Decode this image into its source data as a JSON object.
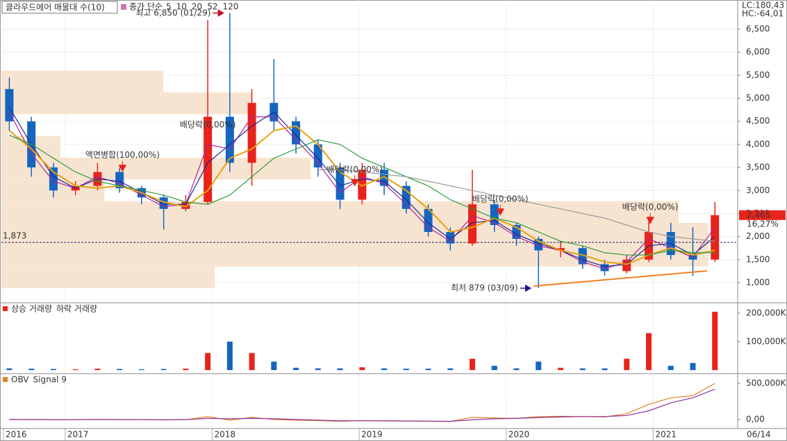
{
  "chart_data": [
    {
      "type": "candlestick",
      "title": "클라우드에어 매물대 수(10)",
      "ma_label": "종가 단순",
      "status": [
        {
          "text": "LC:180,43",
          "color": "#d01010"
        },
        {
          "text": "HC:-64,01",
          "color": "#1040c0"
        }
      ],
      "x": [
        2016.62,
        2016.77,
        2016.92,
        2017.07,
        2017.22,
        2017.37,
        2017.52,
        2017.67,
        2017.82,
        2017.97,
        2018.12,
        2018.27,
        2018.42,
        2018.57,
        2018.72,
        2018.87,
        2019.02,
        2019.17,
        2019.32,
        2019.47,
        2019.62,
        2019.77,
        2019.92,
        2020.07,
        2020.22,
        2020.37,
        2020.52,
        2020.67,
        2020.82,
        2020.97,
        2021.12,
        2021.27,
        2021.42
      ],
      "open": [
        5200,
        4500,
        3500,
        3000,
        3100,
        3400,
        3050,
        2850,
        2600,
        2750,
        4600,
        3600,
        4900,
        4500,
        4000,
        3500,
        2800,
        3450,
        3100,
        2600,
        2100,
        1850,
        2700,
        2250,
        1950,
        1700,
        1750,
        1400,
        1250,
        1500,
        2100,
        1600,
        1500
      ],
      "high": [
        5450,
        4600,
        3600,
        3200,
        3600,
        3500,
        3100,
        2900,
        2900,
        6700,
        6850,
        5200,
        5850,
        4600,
        4100,
        3600,
        3600,
        3600,
        3200,
        2700,
        2200,
        3450,
        2800,
        2300,
        2000,
        1900,
        1800,
        1500,
        1600,
        2400,
        2300,
        2200,
        2750
      ],
      "low": [
        4300,
        3300,
        2850,
        2900,
        3000,
        2950,
        2700,
        2150,
        2550,
        2700,
        3400,
        3100,
        4300,
        3800,
        3300,
        2600,
        2700,
        2900,
        2500,
        2000,
        1700,
        1800,
        2100,
        1800,
        879,
        1550,
        1300,
        1150,
        1200,
        1450,
        1500,
        1150,
        1450
      ],
      "close": [
        4500,
        3500,
        3000,
        3100,
        3400,
        3050,
        2850,
        2600,
        2750,
        4600,
        3600,
        4900,
        4500,
        4000,
        3500,
        2800,
        3450,
        3100,
        2600,
        2100,
        1850,
        2700,
        2250,
        1950,
        1700,
        1750,
        1400,
        1250,
        1500,
        2100,
        1600,
        1500,
        2465
      ],
      "up_color": "#e8231c",
      "down_color": "#1565c0",
      "series": [
        {
          "name": "5",
          "color": "#b0209a",
          "values": [
            4700,
            3800,
            3200,
            3050,
            3300,
            3150,
            2900,
            2650,
            2700,
            4000,
            3900,
            4600,
            4600,
            4100,
            3600,
            2950,
            3300,
            3150,
            2700,
            2200,
            1900,
            2450,
            2300,
            2000,
            1800,
            1700,
            1450,
            1300,
            1450,
            1950,
            1750,
            1550,
            2200
          ]
        },
        {
          "name": "10",
          "color": "#1a2a9a",
          "values": [
            4800,
            4000,
            3300,
            3050,
            3250,
            3200,
            2950,
            2700,
            2700,
            3600,
            4000,
            4400,
            4700,
            4200,
            3700,
            3100,
            3250,
            3200,
            2800,
            2300,
            1950,
            2300,
            2350,
            2050,
            1850,
            1700,
            1500,
            1350,
            1400,
            1800,
            1850,
            1600,
            2000
          ]
        },
        {
          "name": "20",
          "color": "#e8a010",
          "values": [
            4300,
            3900,
            3400,
            3100,
            3050,
            3100,
            2950,
            2750,
            2650,
            3000,
            3700,
            3900,
            4300,
            4400,
            4000,
            3400,
            3100,
            3300,
            3000,
            2600,
            2100,
            2200,
            2400,
            2200,
            1900,
            1700,
            1600,
            1450,
            1400,
            1600,
            1750,
            1600,
            1700
          ]
        },
        {
          "name": "52",
          "color": "#2a9a3a",
          "values": [
            4200,
            4000,
            3700,
            3400,
            3200,
            3100,
            3000,
            2900,
            2750,
            2700,
            2900,
            3300,
            3700,
            3900,
            4100,
            4000,
            3700,
            3500,
            3300,
            3100,
            2800,
            2600,
            2400,
            2300,
            2100,
            1900,
            1800,
            1650,
            1600,
            1600,
            1700,
            1650,
            1650
          ]
        },
        {
          "name": "120",
          "color": "#9a9a9a",
          "values": [
            null,
            null,
            null,
            null,
            null,
            null,
            null,
            null,
            null,
            null,
            null,
            null,
            null,
            null,
            3450,
            3450,
            3400,
            3350,
            3300,
            3200,
            3100,
            3000,
            2900,
            2800,
            2700,
            2600,
            2500,
            2400,
            2250,
            2100,
            2000,
            1950,
            1900
          ]
        }
      ],
      "volume_profile": {
        "bins": [
          880,
          1352,
          1824,
          2296,
          2768,
          3240,
          3712,
          4184,
          4656,
          5128,
          5600
        ],
        "values": [
          29,
          96,
          96,
          92,
          14,
          42,
          8,
          1,
          34,
          22
        ],
        "color": "#f7e4d0"
      },
      "reference_line": {
        "value": 1873,
        "label": "1,873"
      },
      "last": {
        "value": 2465,
        "label": "2,465",
        "change": "16,27%"
      },
      "annotations": [
        {
          "text": "최고 6,850 (01/29)",
          "x": 2018.08,
          "y": 6850,
          "arrow": "right",
          "color": "#c0102a"
        },
        {
          "text": "최저 879 (03/09)",
          "x": 2020.17,
          "y": 879,
          "arrow": "right",
          "color": "#1a1a8c"
        },
        {
          "text": "액면병합(100,00%)",
          "x": 2017.39,
          "y": 3370,
          "arrow": "down",
          "color": "#e8231c"
        },
        {
          "text": "배당락(0,00%)",
          "x": 2017.97,
          "y": 4030,
          "arrow": "down",
          "color": "#e8231c"
        },
        {
          "text": "배당락(0,00%)",
          "x": 2018.97,
          "y": 3060,
          "arrow": "down",
          "color": "#e8231c"
        },
        {
          "text": "배당락(0,00%)",
          "x": 2019.96,
          "y": 2420,
          "arrow": "down",
          "color": "#e8231c"
        },
        {
          "text": "배당락(0,00%)",
          "x": 2020.98,
          "y": 2240,
          "arrow": "down",
          "color": "#e8231c"
        }
      ],
      "xlim": [
        2016.566,
        2021.575
      ],
      "ylim": [
        578,
        7133
      ],
      "yticks": [
        {
          "value": 1000,
          "label": "1,000"
        },
        {
          "value": 1500,
          "label": "1,500"
        },
        {
          "value": 2000,
          "label": "2,000"
        },
        {
          "value": 2500,
          "label": "2,500"
        },
        {
          "value": 3000,
          "label": "3,000"
        },
        {
          "value": 3500,
          "label": "3,500"
        },
        {
          "value": 4000,
          "label": "4,000"
        },
        {
          "value": 4500,
          "label": "4,500"
        },
        {
          "value": 5000,
          "label": "5,000"
        },
        {
          "value": 5500,
          "label": "5,500"
        },
        {
          "value": 6000,
          "label": "6,000"
        },
        {
          "value": 6500,
          "label": "6,500"
        }
      ],
      "grid": true
    },
    {
      "type": "bar",
      "series": [
        {
          "name": "상승 거래량",
          "color": "#e8231c",
          "values": [
            null,
            null,
            null,
            3000,
            5000,
            null,
            null,
            null,
            5000,
            60000,
            null,
            60000,
            null,
            null,
            null,
            null,
            10000,
            null,
            null,
            null,
            null,
            40000,
            null,
            null,
            null,
            8000,
            null,
            null,
            40000,
            130000,
            null,
            null,
            205000
          ]
        },
        {
          "name": "하락 거래량",
          "color": "#1565c0",
          "values": [
            6000,
            5000,
            4000,
            null,
            null,
            4000,
            3000,
            4000,
            null,
            null,
            100000,
            null,
            30000,
            8000,
            6000,
            6000,
            null,
            6000,
            5000,
            5000,
            6000,
            null,
            15000,
            6000,
            30000,
            null,
            6000,
            6000,
            null,
            null,
            15000,
            25000,
            null
          ]
        }
      ],
      "ylim": [
        -10000,
        234000
      ],
      "yticks": [
        {
          "value": 100000,
          "label": "100,000K"
        },
        {
          "value": 200000,
          "label": "200,000K"
        }
      ]
    },
    {
      "type": "line",
      "series": [
        {
          "name": "OBV",
          "color": "#e08020",
          "values": [
            0,
            -2000,
            -5000,
            -3000,
            2000,
            -1000,
            -3000,
            -6000,
            -2000,
            40000,
            -10000,
            30000,
            0,
            -10000,
            -15000,
            -25000,
            -15000,
            -20000,
            -22000,
            -25000,
            -28000,
            30000,
            20000,
            15000,
            40000,
            45000,
            40000,
            35000,
            80000,
            210000,
            300000,
            330000,
            500000
          ]
        },
        {
          "name": "Signal 9",
          "color": "#9030a0",
          "values": [
            0,
            0,
            -2000,
            -3000,
            -1000,
            -1000,
            -2000,
            -4000,
            -3000,
            15000,
            10000,
            15000,
            10000,
            0,
            -10000,
            -18000,
            -17000,
            -18000,
            -20000,
            -22000,
            -25000,
            -5000,
            10000,
            15000,
            25000,
            35000,
            40000,
            40000,
            55000,
            120000,
            230000,
            300000,
            420000
          ]
        }
      ],
      "ylim": [
        -125000,
        625000
      ],
      "yticks": [
        {
          "value": 0,
          "label": "0,00"
        },
        {
          "value": 500000,
          "label": "500,000K"
        }
      ],
      "xticks": [
        {
          "value": 2016.58,
          "label": "2016"
        },
        2017,
        2018,
        2019,
        2020,
        2021
      ],
      "last_date": "06/14"
    }
  ]
}
